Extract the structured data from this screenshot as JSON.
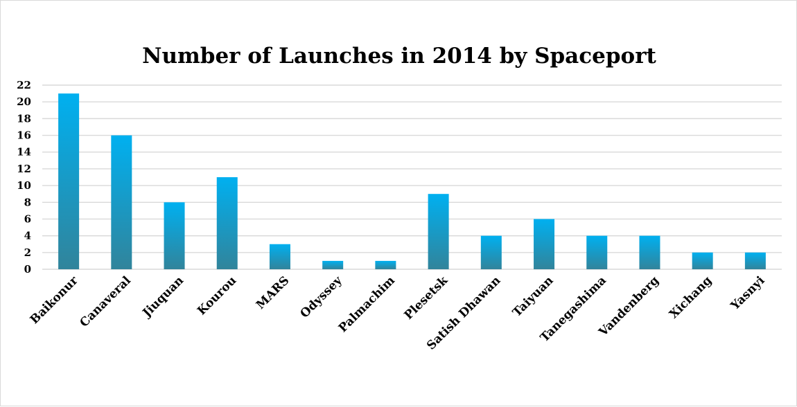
{
  "chart_data": {
    "type": "bar",
    "title": "Number of Launches in 2014 by Spaceport",
    "xlabel": "",
    "ylabel": "",
    "categories": [
      "Baikonur",
      "Canaveral",
      "Jiuquan",
      "Kourou",
      "MARS",
      "Odyssey",
      "Palmachim",
      "Plesetsk",
      "Satish Dhawan",
      "Taiyuan",
      "Tanegashima",
      "Vandenberg",
      "Xichang",
      "Yasnyi"
    ],
    "values": [
      21,
      16,
      8,
      11,
      3,
      1,
      1,
      9,
      4,
      6,
      4,
      4,
      2,
      2
    ],
    "ylim": [
      0,
      22
    ],
    "yticks": [
      "0",
      "2",
      "4",
      "6",
      "8",
      "10",
      "12",
      "14",
      "16",
      "18",
      "20",
      "22"
    ],
    "grid": true,
    "legend": "none",
    "colors": {
      "bar_top": "#00b0f0",
      "bar_bottom": "#31849b",
      "grid": "#d9d9d9"
    }
  }
}
